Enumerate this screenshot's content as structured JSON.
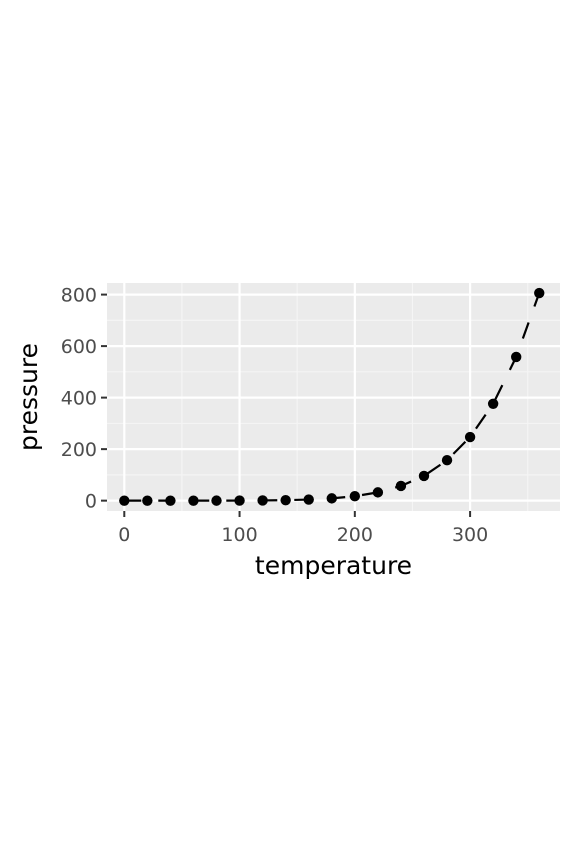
{
  "chart_data": {
    "type": "scatter",
    "xlabel": "temperature",
    "ylabel": "pressure",
    "xlim": [
      -15,
      378
    ],
    "ylim": [
      -40.2,
      845
    ],
    "x_ticks": [
      0,
      100,
      200,
      300
    ],
    "y_ticks": [
      0,
      200,
      400,
      600,
      800
    ],
    "x_tick_labels": [
      "0",
      "100",
      "200",
      "300"
    ],
    "y_tick_labels": [
      "0",
      "200",
      "400",
      "600",
      "800"
    ],
    "grid": true,
    "legend": "none",
    "line_style": "dashed",
    "series": [
      {
        "x": [
          0,
          20,
          40,
          60,
          80,
          100,
          120,
          140,
          160,
          180,
          200,
          220,
          240,
          260,
          280,
          300,
          320,
          340,
          360
        ],
        "y": [
          0.0002,
          0.0012,
          0.006,
          0.03,
          0.09,
          0.27,
          0.75,
          1.85,
          4.2,
          8.8,
          17.3,
          32.1,
          57,
          96,
          157,
          247,
          376,
          558,
          806
        ]
      }
    ],
    "colors": {
      "panel_background": "#ebebeb",
      "grid_major": "#ffffff",
      "grid_minor": "#f5f5f5",
      "points": "#000000",
      "line": "#000000",
      "tick_text": "#4d4d4d",
      "tick_marks": "#333333",
      "axis_title": "#000000"
    }
  }
}
